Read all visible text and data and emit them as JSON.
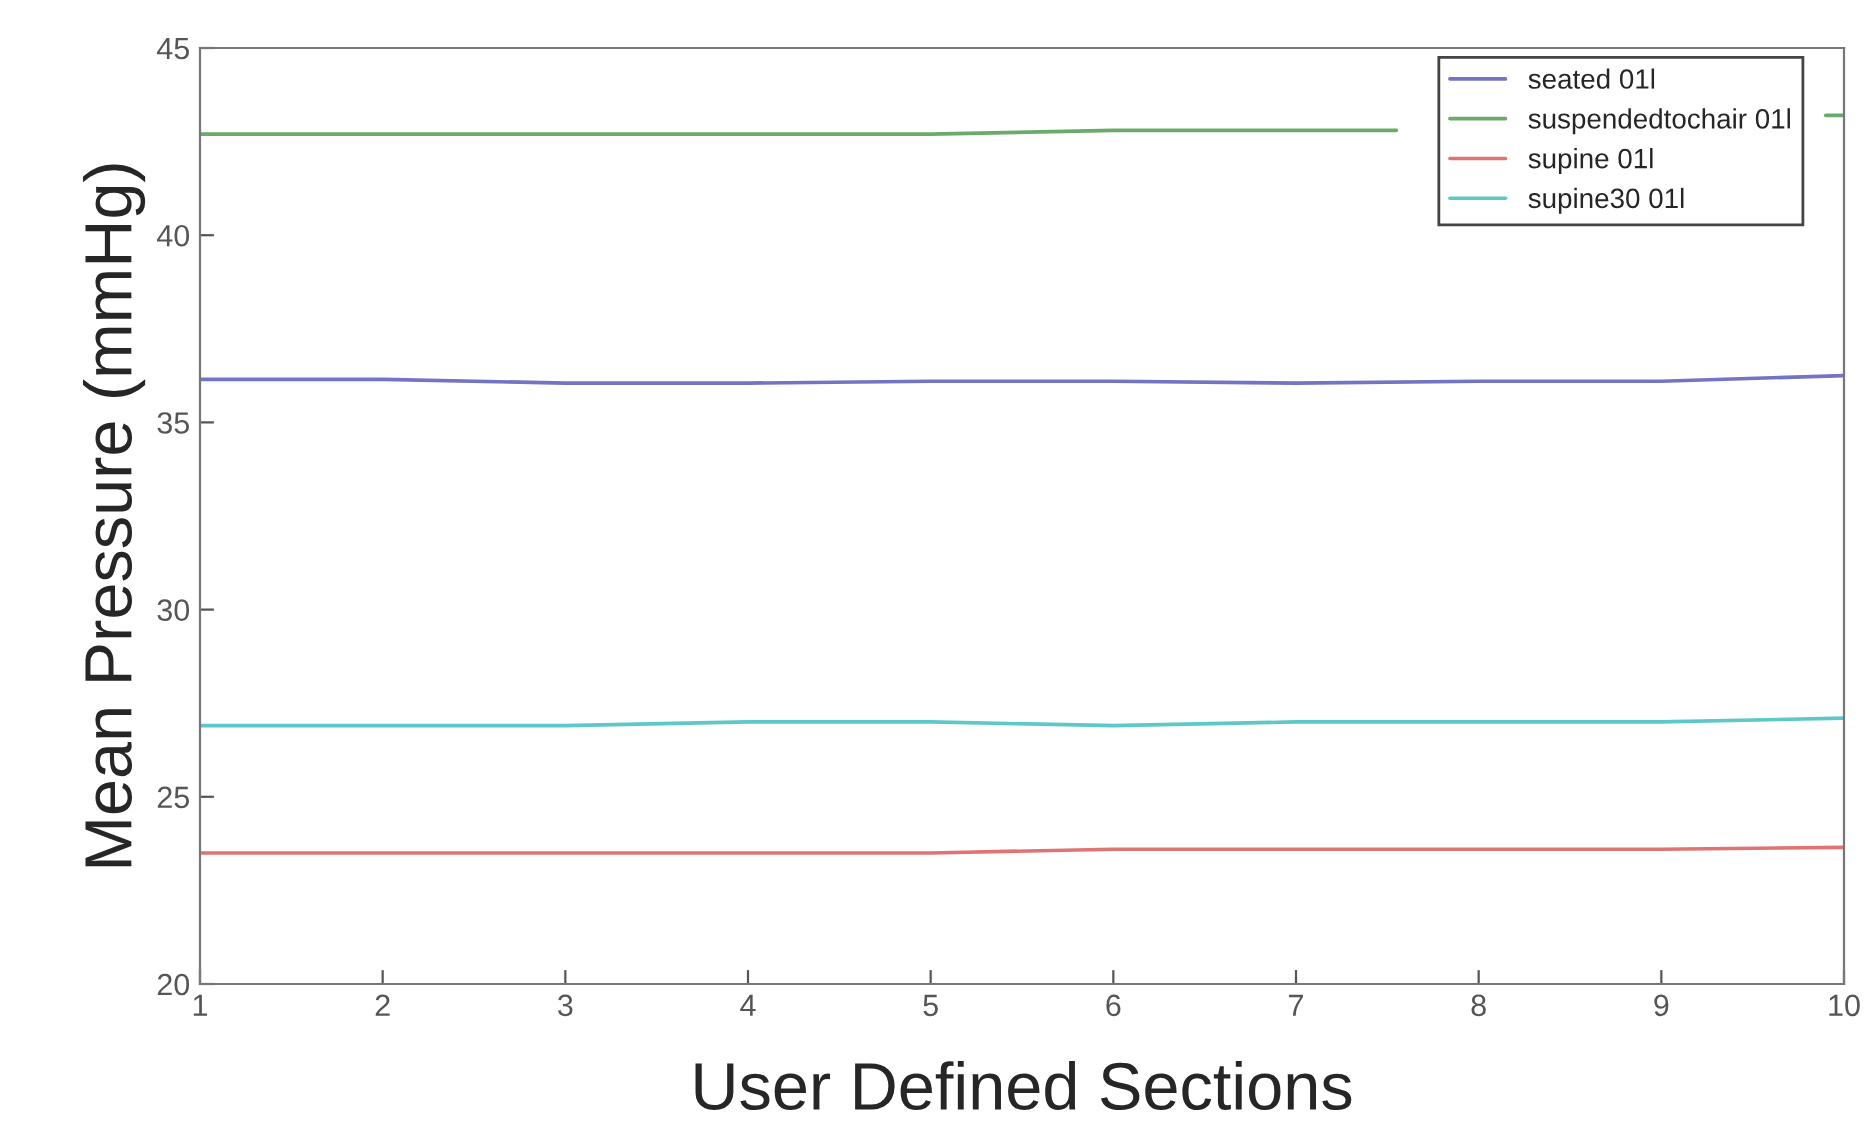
{
  "chart_data": {
    "type": "line",
    "xlabel": "User Defined Sections",
    "ylabel": "Mean Pressure (mmHg)",
    "x": [
      1,
      2,
      3,
      4,
      5,
      6,
      7,
      8,
      9,
      10
    ],
    "series": [
      {
        "name": "seated 01l",
        "color": "#7474c4",
        "values": [
          36.15,
          36.15,
          36.05,
          36.05,
          36.1,
          36.1,
          36.05,
          36.1,
          36.1,
          36.25
        ]
      },
      {
        "name": "suspendedtochair 01l",
        "color": "#6aaa6a",
        "x": [
          1,
          2,
          3,
          4,
          5,
          6,
          7,
          7.55,
          8.5,
          9.9,
          10
        ],
        "values": [
          42.7,
          42.7,
          42.7,
          42.7,
          42.7,
          42.8,
          42.8,
          42.8,
          null,
          43.2,
          43.2
        ]
      },
      {
        "name": "supine 01l",
        "color": "#e07474",
        "values": [
          23.5,
          23.5,
          23.5,
          23.5,
          23.5,
          23.6,
          23.6,
          23.6,
          23.6,
          23.65
        ]
      },
      {
        "name": "supine30 01l",
        "color": "#5ec8c8",
        "values": [
          26.9,
          26.9,
          26.9,
          27.0,
          27.0,
          26.9,
          27.0,
          27.0,
          27.0,
          27.1
        ]
      }
    ],
    "xlim": [
      1,
      10
    ],
    "xticks": [
      1,
      2,
      3,
      4,
      5,
      6,
      7,
      8,
      9,
      10
    ],
    "ylim": [
      20,
      45
    ],
    "yticks": [
      20,
      25,
      30,
      35,
      40,
      45
    ],
    "grid": false,
    "legend": "top right",
    "marker": "none",
    "line_style": "solid"
  }
}
